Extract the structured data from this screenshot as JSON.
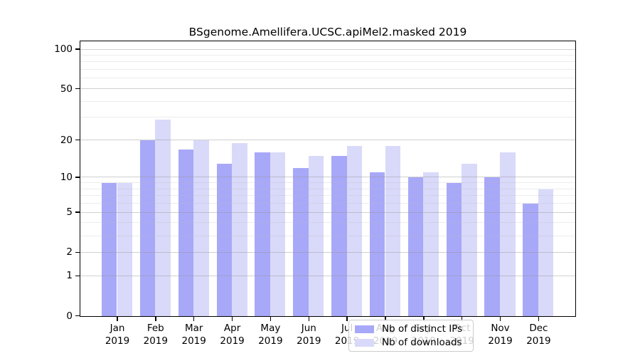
{
  "title": "BSgenome.Amellifera.UCSC.apiMel2.masked 2019",
  "chart_data": {
    "type": "bar",
    "title": "BSgenome.Amellifera.UCSC.apiMel2.masked 2019",
    "categories": [
      "Jan",
      "Feb",
      "Mar",
      "Apr",
      "May",
      "Jun",
      "Jul",
      "Aug",
      "Sep",
      "Oct",
      "Nov",
      "Dec"
    ],
    "year_label": "2019",
    "series": [
      {
        "name": "Nb of distinct IPs",
        "color": "#a8a8f8",
        "values": [
          9,
          20,
          17,
          13,
          16,
          12,
          15,
          11,
          10,
          9,
          10,
          6
        ]
      },
      {
        "name": "Nb of downloads",
        "color": "#d9d9fa",
        "values": [
          9,
          29,
          20,
          19,
          16,
          15,
          18,
          18,
          11,
          13,
          16,
          8
        ]
      }
    ],
    "xlabel": "",
    "ylabel": "",
    "scale": "log1p",
    "ylim": [
      0,
      114
    ],
    "yticks": [
      100,
      50,
      20,
      10,
      5,
      2,
      1,
      0
    ],
    "major_gridlines": [
      1,
      2,
      5,
      10,
      20,
      50,
      100
    ],
    "minor_gridlines": [
      3,
      4,
      6,
      7,
      8,
      9,
      30,
      40,
      60,
      70,
      80,
      90
    ],
    "grid": true,
    "legend_position": "inside-bottom-center"
  },
  "legend": {
    "items": [
      {
        "label": "Nb of distinct IPs",
        "color": "#a8a8f8"
      },
      {
        "label": "Nb of downloads",
        "color": "#d9d9fa"
      }
    ]
  }
}
